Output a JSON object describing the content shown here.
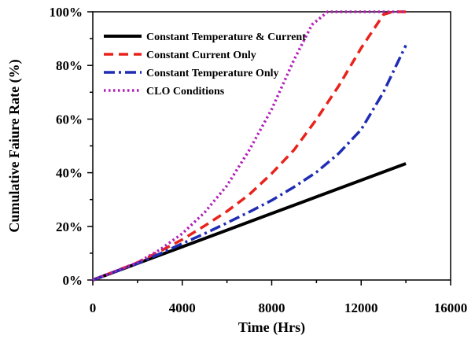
{
  "chart_data": {
    "type": "line",
    "title": "",
    "xlabel": "Time (Hrs)",
    "ylabel": "Cumulative Faiure Rate (%)",
    "xlim": [
      0,
      16000
    ],
    "ylim": [
      0,
      100
    ],
    "x_ticks": [
      0,
      4000,
      8000,
      12000,
      16000
    ],
    "x_tick_labels": [
      "0",
      "4000",
      "8000",
      "12000",
      "16000"
    ],
    "y_ticks": [
      0,
      20,
      40,
      60,
      80,
      100
    ],
    "y_tick_labels": [
      "0%",
      "20%",
      "40%",
      "60%",
      "80%",
      "100%"
    ],
    "grid": false,
    "legend_position": "top-left",
    "series": [
      {
        "name": "Constant Temperature & Current",
        "color": "#000000",
        "style": "solid",
        "x": [
          0,
          2000,
          4000,
          6000,
          8000,
          10000,
          12000,
          14000
        ],
        "y": [
          0,
          6.2,
          12.4,
          18.6,
          24.8,
          31,
          37.2,
          43.4
        ]
      },
      {
        "name": "Constant Current Only",
        "color": "#e8231b",
        "style": "dashed",
        "x": [
          0,
          2000,
          3000,
          4000,
          5000,
          6000,
          7000,
          8000,
          9000,
          10000,
          11000,
          12000,
          13000,
          13400,
          14000
        ],
        "y": [
          0,
          6.5,
          10.7,
          15.1,
          20.2,
          25.6,
          31.9,
          39.7,
          48.5,
          59.9,
          72.4,
          86.5,
          99,
          100,
          100
        ]
      },
      {
        "name": "Constant Temperature Only",
        "color": "#1f2cb4",
        "style": "dashdot",
        "x": [
          0,
          2000,
          3000,
          4000,
          5000,
          6000,
          7000,
          8000,
          9000,
          10000,
          11000,
          12000,
          13000,
          14000
        ],
        "y": [
          0,
          6.2,
          9.8,
          13.6,
          17.3,
          21.3,
          25.4,
          29.7,
          34.7,
          40.2,
          47.2,
          56.1,
          70.1,
          87.5
        ]
      },
      {
        "name": "CLO Conditions",
        "color": "#b31fb9",
        "style": "dotted",
        "x": [
          0,
          2000,
          3000,
          4000,
          5000,
          6000,
          7000,
          8000,
          9000,
          9800,
          10500,
          12000,
          14000
        ],
        "y": [
          0,
          6.5,
          11.3,
          17.3,
          25.2,
          35.2,
          48.5,
          63.7,
          82.1,
          95.2,
          100,
          100,
          100
        ]
      }
    ]
  }
}
